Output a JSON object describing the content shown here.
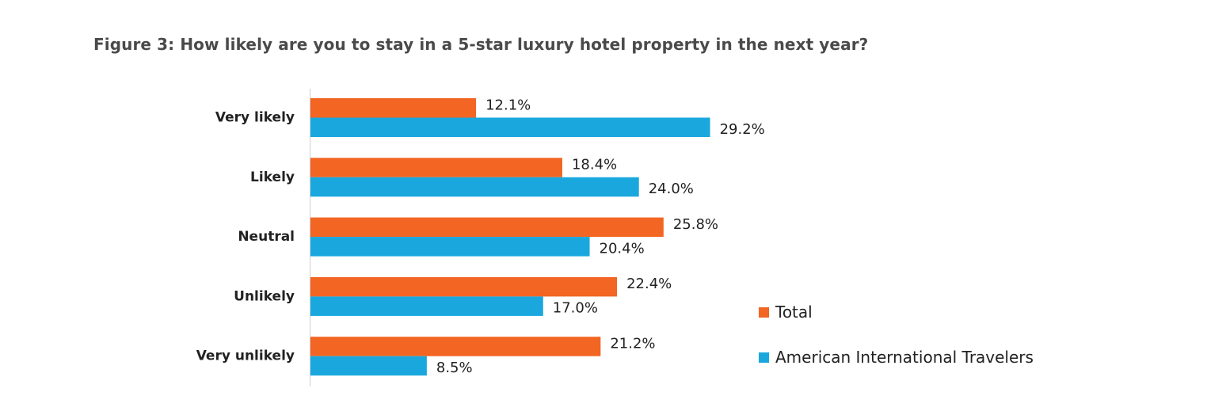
{
  "chart_data": {
    "type": "bar",
    "orientation": "horizontal",
    "title": "Figure 3: How likely are you to stay in a 5-star luxury hotel property in the next year?",
    "categories": [
      "Very likely",
      "Likely",
      "Neutral",
      "Unlikely",
      "Very unlikely"
    ],
    "series": [
      {
        "name": "Total",
        "color": "#F26522",
        "values": [
          12.1,
          18.4,
          25.8,
          22.4,
          21.2
        ],
        "labels": [
          "12.1%",
          "18.4%",
          "25.8%",
          "22.4%",
          "21.2%"
        ]
      },
      {
        "name": "American International Travelers",
        "color": "#1AA7DE",
        "values": [
          29.2,
          24.0,
          20.4,
          17.0,
          8.5
        ],
        "labels": [
          "29.2%",
          "24.0%",
          "20.4%",
          "17.0%",
          "8.5%"
        ]
      }
    ],
    "xlim": [
      0,
      30
    ],
    "grid": false,
    "legend_position": "right"
  }
}
